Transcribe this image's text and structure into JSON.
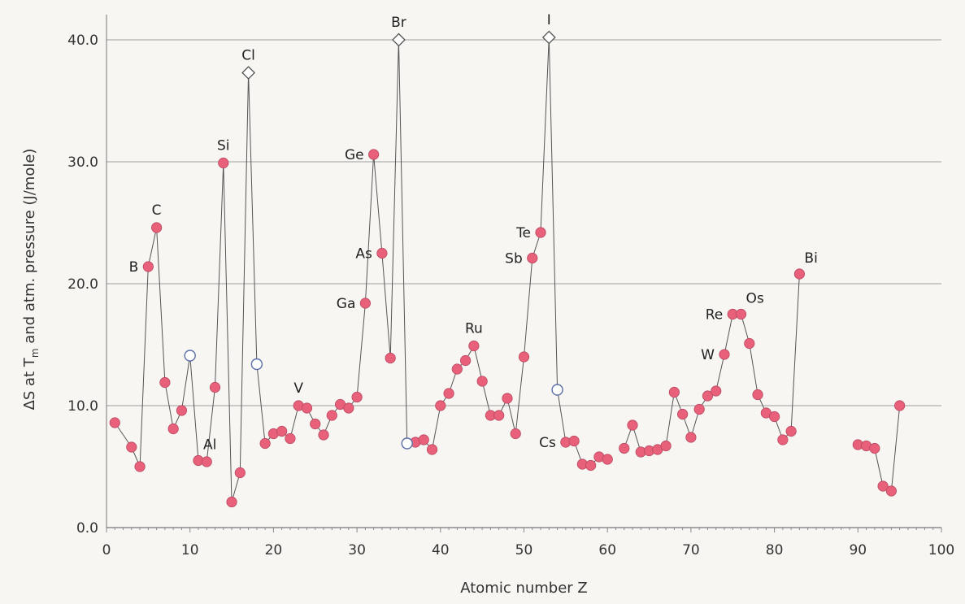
{
  "chart_data": {
    "type": "scatter",
    "title": "",
    "xlabel": "Atomic number Z",
    "ylabel_parts": {
      "pre": "ΔS at T",
      "sub": "m",
      "post": " and atm. pressure (J/mole)"
    },
    "xlim": [
      0,
      100
    ],
    "ylim": [
      0,
      40
    ],
    "x_ticks": [
      0,
      10,
      20,
      30,
      40,
      50,
      60,
      70,
      80,
      90,
      100
    ],
    "y_ticks": [
      0,
      10,
      20,
      30,
      40
    ],
    "x_tick_labels": [
      "0",
      "10",
      "20",
      "30",
      "40",
      "50",
      "60",
      "70",
      "80",
      "90",
      "100"
    ],
    "y_tick_labels": [
      "0.0",
      "10.0",
      "20.0",
      "30.0",
      "40.0"
    ],
    "grid": "horizontal",
    "legend": "none",
    "colors": {
      "solid": "#e8607a",
      "open_stroke": "#5b6fa8",
      "diamond_stroke": "#555555",
      "line": "#555555",
      "grid": "#9e9e9e"
    },
    "segments": [
      [
        [
          1,
          8.6
        ],
        [
          3,
          6.6
        ],
        [
          4,
          5.0
        ],
        [
          5,
          21.4
        ],
        [
          6,
          24.6
        ],
        [
          7,
          11.9
        ],
        [
          8,
          8.1
        ],
        [
          9,
          9.6
        ],
        [
          10,
          14.1
        ],
        [
          11,
          5.5
        ],
        [
          12,
          5.4
        ],
        [
          13,
          11.5
        ],
        [
          14,
          29.9
        ],
        [
          15,
          2.1
        ],
        [
          16,
          4.5
        ],
        [
          17,
          37.3
        ],
        [
          18,
          13.4
        ],
        [
          19,
          6.9
        ],
        [
          20,
          7.7
        ],
        [
          21,
          7.9
        ],
        [
          22,
          7.3
        ],
        [
          23,
          10.0
        ],
        [
          24,
          9.8
        ],
        [
          25,
          8.5
        ],
        [
          26,
          7.6
        ],
        [
          27,
          9.2
        ],
        [
          28,
          10.1
        ],
        [
          29,
          9.8
        ],
        [
          30,
          10.7
        ],
        [
          31,
          18.4
        ],
        [
          32,
          30.6
        ],
        [
          33,
          22.5
        ],
        [
          34,
          13.9
        ],
        [
          35,
          40.0
        ],
        [
          36,
          6.9
        ],
        [
          37,
          7.0
        ],
        [
          38,
          7.2
        ],
        [
          39,
          6.4
        ],
        [
          40,
          10.0
        ],
        [
          41,
          11.0
        ],
        [
          42,
          13.0
        ],
        [
          43,
          13.7
        ],
        [
          44,
          14.9
        ],
        [
          45,
          12.0
        ],
        [
          46,
          9.2
        ],
        [
          47,
          9.2
        ],
        [
          48,
          10.6
        ],
        [
          49,
          7.7
        ],
        [
          50,
          14.0
        ],
        [
          51,
          22.1
        ],
        [
          52,
          24.2
        ],
        [
          53,
          40.2
        ],
        [
          54,
          11.3
        ],
        [
          55,
          7.0
        ],
        [
          56,
          7.1
        ],
        [
          57,
          5.2
        ],
        [
          58,
          5.1
        ],
        [
          59,
          5.8
        ],
        [
          60,
          5.6
        ]
      ],
      [
        [
          62,
          6.5
        ],
        [
          63,
          8.4
        ],
        [
          64,
          6.2
        ],
        [
          65,
          6.3
        ],
        [
          66,
          6.4
        ],
        [
          67,
          6.7
        ],
        [
          68,
          11.1
        ],
        [
          69,
          9.3
        ],
        [
          70,
          7.4
        ],
        [
          71,
          9.7
        ],
        [
          72,
          10.8
        ],
        [
          73,
          11.2
        ],
        [
          74,
          14.2
        ],
        [
          75,
          17.5
        ],
        [
          76,
          17.5
        ],
        [
          77,
          15.1
        ],
        [
          78,
          10.9
        ],
        [
          79,
          9.4
        ],
        [
          80,
          9.1
        ],
        [
          81,
          7.2
        ],
        [
          82,
          7.9
        ],
        [
          83,
          20.8
        ]
      ],
      [
        [
          90,
          6.8
        ],
        [
          91,
          6.7
        ],
        [
          92,
          6.5
        ],
        [
          93,
          3.4
        ],
        [
          94,
          3.0
        ],
        [
          95,
          10.0
        ]
      ]
    ],
    "open_circles": [
      [
        10,
        14.1
      ],
      [
        18,
        13.4
      ],
      [
        36,
        6.9
      ],
      [
        54,
        11.3
      ]
    ],
    "open_diamonds": [
      [
        17,
        37.3
      ],
      [
        35,
        40.0
      ],
      [
        53,
        40.2
      ]
    ],
    "annotations": [
      {
        "text": "B",
        "x": 5,
        "y": 21.4,
        "pos": "left"
      },
      {
        "text": "C",
        "x": 6,
        "y": 24.6,
        "pos": "above"
      },
      {
        "text": "Al",
        "x": 11,
        "y": 5.5,
        "pos": "upright"
      },
      {
        "text": "Si",
        "x": 14,
        "y": 29.9,
        "pos": "above"
      },
      {
        "text": "Cl",
        "x": 17,
        "y": 37.3,
        "pos": "above"
      },
      {
        "text": "V",
        "x": 23,
        "y": 10.0,
        "pos": "above"
      },
      {
        "text": "Ga",
        "x": 31,
        "y": 18.4,
        "pos": "left"
      },
      {
        "text": "Ge",
        "x": 32,
        "y": 30.6,
        "pos": "left"
      },
      {
        "text": "As",
        "x": 33,
        "y": 22.5,
        "pos": "left"
      },
      {
        "text": "Br",
        "x": 35,
        "y": 40.0,
        "pos": "above"
      },
      {
        "text": "Ru",
        "x": 44,
        "y": 14.9,
        "pos": "above"
      },
      {
        "text": "Sb",
        "x": 51,
        "y": 22.1,
        "pos": "left"
      },
      {
        "text": "Te",
        "x": 52,
        "y": 24.2,
        "pos": "left"
      },
      {
        "text": "I",
        "x": 53,
        "y": 40.2,
        "pos": "above"
      },
      {
        "text": "Cs",
        "x": 55,
        "y": 7.0,
        "pos": "left"
      },
      {
        "text": "W",
        "x": 74,
        "y": 14.2,
        "pos": "left"
      },
      {
        "text": "Re",
        "x": 75,
        "y": 17.5,
        "pos": "left"
      },
      {
        "text": "Os",
        "x": 76,
        "y": 17.5,
        "pos": "upright"
      },
      {
        "text": "Bi",
        "x": 83,
        "y": 20.8,
        "pos": "upright"
      }
    ]
  }
}
